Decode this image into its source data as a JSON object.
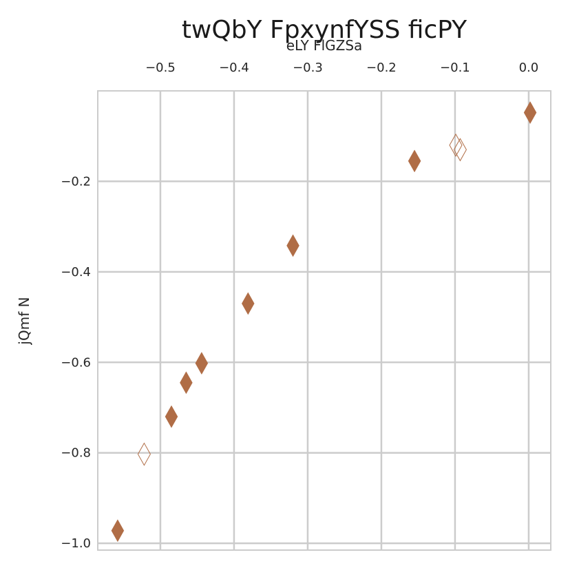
{
  "chart_data": {
    "type": "scatter",
    "title": "twQbY FpxynfYSS ficPY",
    "xlabel": "eLY FlGZSa",
    "ylabel": "jQmf N",
    "xlim": [
      -0.585,
      0.03
    ],
    "ylim": [
      -1.015,
      0.0
    ],
    "xticks": [
      -0.5,
      -0.4,
      -0.3,
      -0.2,
      -0.1,
      0.0
    ],
    "xtick_labels": [
      "−0.5",
      "−0.4",
      "−0.3",
      "−0.2",
      "−0.1",
      "0.0"
    ],
    "yticks": [
      -1.0,
      -0.8,
      -0.6,
      -0.4,
      -0.2
    ],
    "ytick_labels": [
      "−1.0",
      "−0.8",
      "−0.6",
      "−0.4",
      "−0.2"
    ],
    "x_axis_position": "top",
    "grid": true,
    "marker": "diamond",
    "color": "#b06d46",
    "series": [
      {
        "marker_style": "filled",
        "points": [
          {
            "x": -0.558,
            "y": -0.972
          },
          {
            "x": -0.485,
            "y": -0.72
          },
          {
            "x": -0.465,
            "y": -0.645
          },
          {
            "x": -0.444,
            "y": -0.602
          },
          {
            "x": -0.381,
            "y": -0.47
          },
          {
            "x": -0.32,
            "y": -0.342
          },
          {
            "x": -0.155,
            "y": -0.155
          },
          {
            "x": 0.002,
            "y": -0.048
          }
        ]
      },
      {
        "marker_style": "hollow",
        "points": [
          {
            "x": -0.522,
            "y": -0.803
          },
          {
            "x": -0.099,
            "y": -0.12
          },
          {
            "x": -0.093,
            "y": -0.13
          }
        ]
      }
    ]
  }
}
